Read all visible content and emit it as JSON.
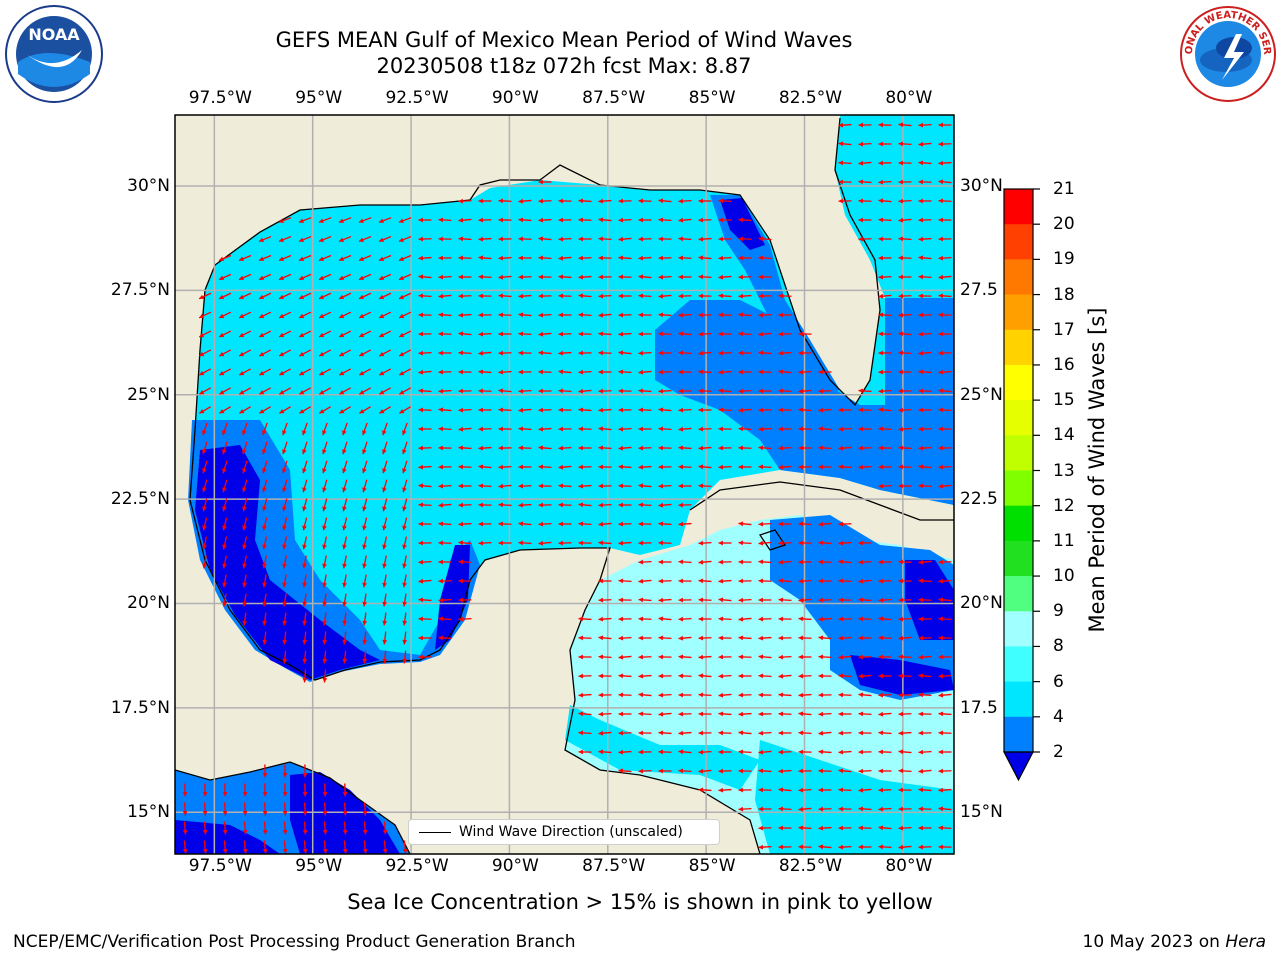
{
  "title_line1": "GEFS MEAN Gulf of Mexico Mean Period of Wind Waves",
  "title_line2": "20230508 t18z 072h fcst   Max: 8.87",
  "map": {
    "lon_range": [
      -98.5,
      -78.7
    ],
    "lat_range": [
      14.0,
      31.7
    ],
    "lon_ticks": [
      "97.5°W",
      "95°W",
      "92.5°W",
      "90°W",
      "87.5°W",
      "85°W",
      "82.5°W",
      "80°W"
    ],
    "lon_tick_values": [
      -97.5,
      -95,
      -92.5,
      -90,
      -87.5,
      -85,
      -82.5,
      -80
    ],
    "lat_ticks": [
      "30°N",
      "27.5°N",
      "25°N",
      "22.5°N",
      "20°N",
      "17.5°N",
      "15°N"
    ],
    "lat_tick_values": [
      30,
      27.5,
      25,
      22.5,
      20,
      17.5,
      15
    ],
    "lat_ticks_right": [
      "30°N",
      "27.5",
      "25°N",
      "22.5",
      "20°N",
      "17.5",
      "15°N"
    ],
    "land_color": "#efedd9",
    "grid": true,
    "arrow_color": "#ff0000",
    "prevailing_wind_direction": "from east (westward)"
  },
  "legend_label": "Wind Wave Direction (unscaled)",
  "colorbar": {
    "label": "Mean Period of Wind Waves [s]",
    "ticks": [
      "2",
      "4",
      "6",
      "8",
      "9",
      "10",
      "11",
      "12",
      "13",
      "14",
      "15",
      "16",
      "17",
      "18",
      "19",
      "20",
      "21"
    ],
    "colors": [
      "#0000e8",
      "#0080ff",
      "#00e6ff",
      "#40ffff",
      "#a0ffff",
      "#50ff80",
      "#20e020",
      "#00e000",
      "#80ff00",
      "#c0ff00",
      "#e6ff00",
      "#ffff00",
      "#ffd200",
      "#ffa000",
      "#ff7800",
      "#ff4000",
      "#ff0000"
    ],
    "extend": "min"
  },
  "seaice_note": "Sea Ice Concentration > 15% is shown in pink to yellow",
  "footer_left": "NCEP/EMC/Verification Post Processing Product Generation Branch",
  "footer_right_prefix": "10 May 2023 on ",
  "footer_right_host": "Hera",
  "logos": {
    "left_text": "NOAA",
    "right_text": "NATIONAL WEATHER SERVICE"
  }
}
